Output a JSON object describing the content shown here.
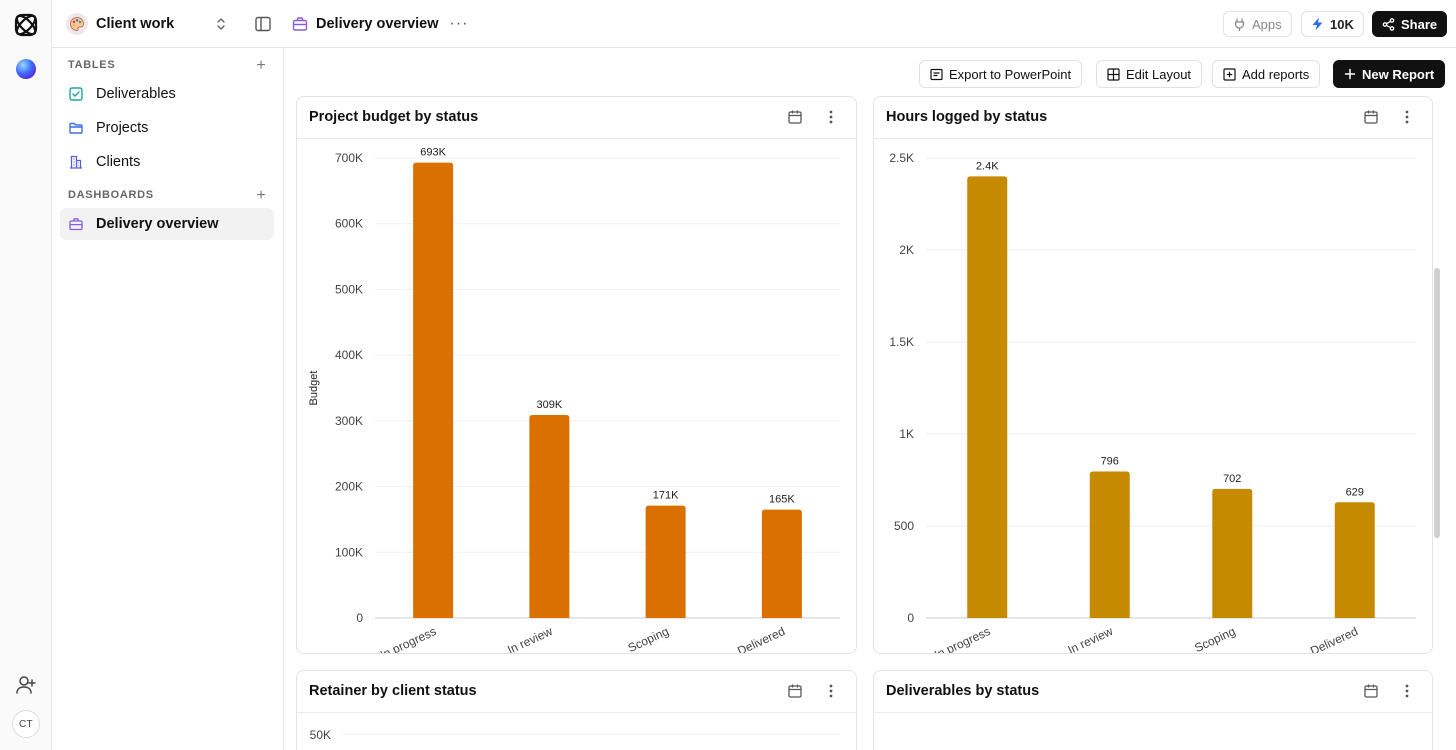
{
  "rail": {
    "logo_icon": "atom-logo-icon",
    "workspace_orb": "gradient-orb-icon",
    "invite_icon": "user-plus-icon",
    "avatar_initials": "CT"
  },
  "topbar": {
    "workspace_name": "Client work",
    "page_title": "Delivery overview",
    "more": "···",
    "apps_label": "Apps",
    "credits_label": "10K",
    "share_label": "Share"
  },
  "sidebar": {
    "tables_heading": "TABLES",
    "dashboards_heading": "DASHBOARDS",
    "tables": [
      {
        "label": "Deliverables",
        "icon": "check-square-icon",
        "color": "#1aa89b"
      },
      {
        "label": "Projects",
        "icon": "folder-icon",
        "color": "#3b6fe0"
      },
      {
        "label": "Clients",
        "icon": "building-icon",
        "color": "#5b5fd6"
      }
    ],
    "dashboards": [
      {
        "label": "Delivery overview",
        "icon": "briefcase-icon",
        "color": "#8b5cd6"
      }
    ]
  },
  "actions": {
    "export_label": "Export to PowerPoint",
    "edit_layout_label": "Edit Layout",
    "add_reports_label": "Add reports",
    "new_report_label": "New Report"
  },
  "cards": [
    {
      "title": "Project budget by status"
    },
    {
      "title": "Hours logged by status"
    },
    {
      "title": "Retainer by client status"
    },
    {
      "title": "Deliverables by status"
    }
  ],
  "chart_data": [
    {
      "type": "bar",
      "title": "Project budget by status",
      "ylabel": "Budget",
      "xlabel": "",
      "categories": [
        "In progress",
        "In review",
        "Scoping",
        "Delivered"
      ],
      "values": [
        693000,
        309000,
        171000,
        165000
      ],
      "value_labels": [
        "693K",
        "309K",
        "171K",
        "165K"
      ],
      "ylim": [
        0,
        700000
      ],
      "yticks": [
        0,
        100000,
        200000,
        300000,
        400000,
        500000,
        600000,
        700000
      ],
      "ytick_labels": [
        "0",
        "100K",
        "200K",
        "300K",
        "400K",
        "500K",
        "600K",
        "700K"
      ],
      "color": "#d97000",
      "grid": true
    },
    {
      "type": "bar",
      "title": "Hours logged by status",
      "ylabel": "",
      "xlabel": "",
      "categories": [
        "In progress",
        "In review",
        "Scoping",
        "Delivered"
      ],
      "values": [
        2400,
        796,
        702,
        629
      ],
      "value_labels": [
        "2.4K",
        "796",
        "702",
        "629"
      ],
      "ylim": [
        0,
        2500
      ],
      "yticks": [
        0,
        500,
        1000,
        1500,
        2000,
        2500
      ],
      "ytick_labels": [
        "0",
        "500",
        "1K",
        "1.5K",
        "2K",
        "2.5K"
      ],
      "color": "#c68a00",
      "grid": true
    },
    {
      "type": "bar",
      "title": "Retainer by client status",
      "yticks": [
        50000
      ],
      "ytick_labels": [
        "50K"
      ]
    }
  ]
}
